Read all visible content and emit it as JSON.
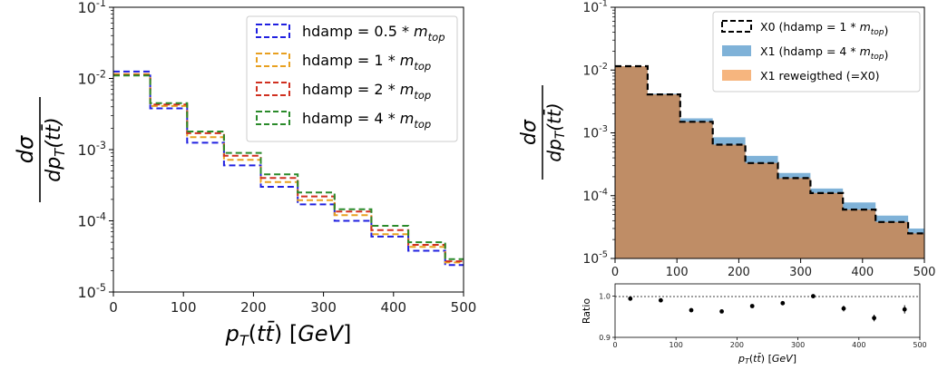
{
  "chart_data": [
    {
      "type": "line",
      "panel": "left",
      "ylabel": "dσ / dp_T(t t̄)",
      "xlabel": "p_T(t t̄) [GeV]",
      "xlim": [
        0,
        500
      ],
      "ylim": [
        1e-05,
        0.1
      ],
      "y_scale": "log",
      "x_ticks": [
        "0",
        "100",
        "200",
        "300",
        "400",
        "500"
      ],
      "y_ticks": [
        "10^-5",
        "10^-4",
        "10^-3",
        "10^-2",
        "10^-1"
      ],
      "bin_edges": [
        0,
        52.6,
        105.3,
        157.9,
        210.5,
        263.2,
        315.8,
        368.4,
        421.1,
        473.7,
        500
      ],
      "legend_position": "top-right",
      "series": [
        {
          "name": "hdamp = 0.5 * m_top",
          "color": "#2020e0",
          "values": [
            0.0125,
            0.0038,
            0.00125,
            0.0006,
            0.0003,
            0.00017,
            0.0001,
            6e-05,
            3.8e-05,
            2.4e-05
          ]
        },
        {
          "name": "hdamp = 1 * m_top",
          "color": "#e8a020",
          "values": [
            0.0115,
            0.0041,
            0.0015,
            0.00072,
            0.00035,
            0.000195,
            0.00012,
            6.5e-05,
            4.3e-05,
            2.6e-05
          ]
        },
        {
          "name": "hdamp = 2 * m_top",
          "color": "#d03020",
          "values": [
            0.0112,
            0.0043,
            0.0017,
            0.00082,
            0.0004,
            0.00022,
            0.000135,
            7.4e-05,
            4.6e-05,
            2.7e-05
          ]
        },
        {
          "name": "hdamp = 4 * m_top",
          "color": "#2a8a2a",
          "values": [
            0.011,
            0.0045,
            0.0018,
            0.0009,
            0.00045,
            0.00025,
            0.000145,
            8.5e-05,
            5e-05,
            2.9e-05
          ]
        }
      ]
    },
    {
      "type": "area",
      "panel": "right-top",
      "ylabel": "dσ / dp_T(t t̄)",
      "xlim": [
        0,
        500
      ],
      "ylim": [
        1e-05,
        0.1
      ],
      "y_scale": "log",
      "x_ticks": [
        "0",
        "100",
        "200",
        "300",
        "400",
        "500"
      ],
      "y_ticks": [
        "10^-5",
        "10^-4",
        "10^-3",
        "10^-2",
        "10^-1"
      ],
      "bin_edges": [
        0,
        52.6,
        105.3,
        157.9,
        210.5,
        263.2,
        315.8,
        368.4,
        421.1,
        473.7,
        500
      ],
      "legend_position": "top-right",
      "series": [
        {
          "name": "X0 (hdamp = 1 * m_top)",
          "style": "dashed-step",
          "color": "#000000",
          "values": [
            0.0115,
            0.0041,
            0.0015,
            0.00065,
            0.00033,
            0.00019,
            0.00011,
            6e-05,
            3.8e-05,
            2.5e-05
          ]
        },
        {
          "name": "X1 (hdamp = 4 * m_top)",
          "style": "filled",
          "color": "#7fb2d8",
          "values": [
            0.0115,
            0.0042,
            0.0017,
            0.00085,
            0.00043,
            0.00023,
            0.00013,
            7.8e-05,
            4.8e-05,
            3e-05
          ]
        },
        {
          "name": "X1 reweigthed (=X0)",
          "style": "filled",
          "color": "#f6b57e",
          "values": [
            0.0115,
            0.0041,
            0.0015,
            0.00065,
            0.00033,
            0.00019,
            0.00011,
            6e-05,
            3.8e-05,
            2.5e-05
          ]
        }
      ]
    },
    {
      "type": "scatter",
      "panel": "right-bottom",
      "ylabel": "Ratio",
      "xlabel": "p_T(t t̄) [GeV]",
      "xlim": [
        0,
        500
      ],
      "ylim": [
        0.9,
        1.03
      ],
      "x_ticks": [
        "0",
        "100",
        "200",
        "300",
        "400",
        "500"
      ],
      "y_ticks": [
        "0.9",
        "1.0"
      ],
      "reference_line": 1.0,
      "x": [
        25,
        75,
        125,
        175,
        225,
        275,
        325,
        375,
        425,
        475
      ],
      "values": [
        0.994,
        0.99,
        0.966,
        0.963,
        0.976,
        0.983,
        1.0,
        0.97,
        0.947,
        0.968
      ],
      "errors": [
        0.002,
        0.002,
        0.002,
        0.002,
        0.003,
        0.003,
        0.005,
        0.007,
        0.008,
        0.01
      ]
    }
  ]
}
